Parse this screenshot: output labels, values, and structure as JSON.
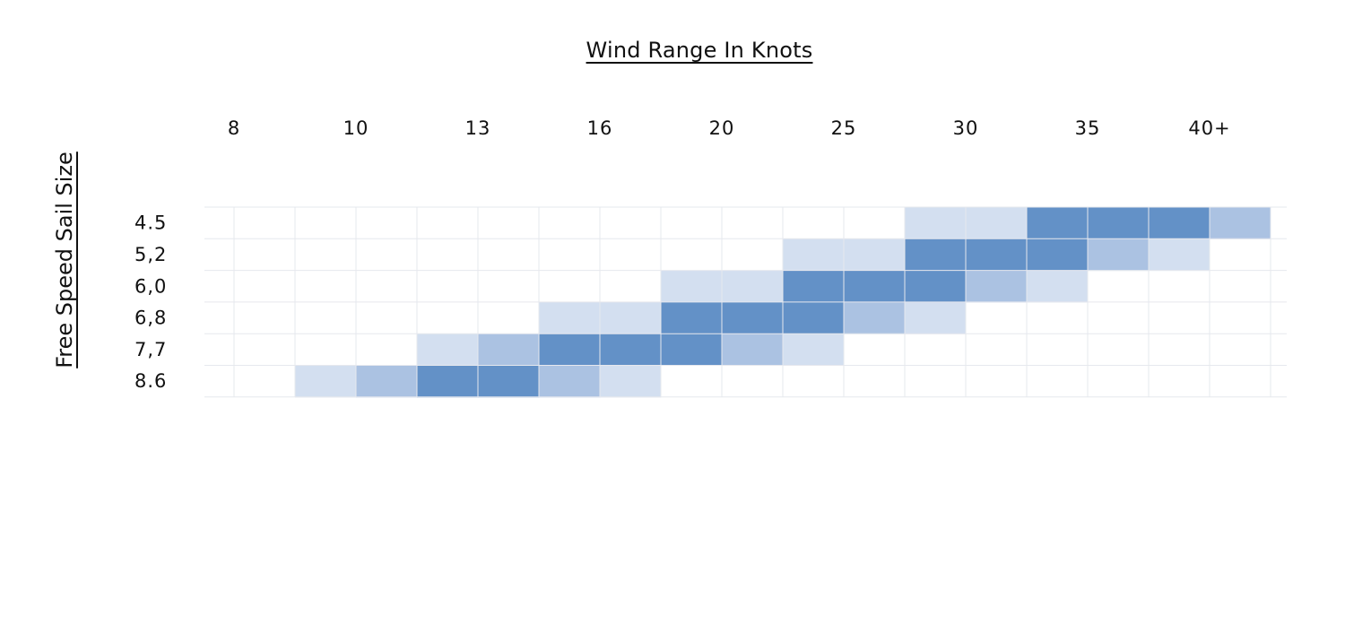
{
  "chart_data": {
    "type": "heatmap",
    "title": "Wind Range In Knots",
    "xlabel": "Wind Range In Knots",
    "ylabel": "Free Speed Sail Size",
    "x_ticks": [
      "8",
      "10",
      "13",
      "16",
      "20",
      "25",
      "30",
      "35",
      "40+"
    ],
    "rows": [
      {
        "label": "4.5",
        "cells": [
          0,
          0,
          0,
          0,
          0,
          0,
          0,
          0,
          0,
          0,
          0,
          1,
          1,
          3,
          3,
          3,
          2
        ]
      },
      {
        "label": "5,2",
        "cells": [
          0,
          0,
          0,
          0,
          0,
          0,
          0,
          0,
          0,
          1,
          1,
          3,
          3,
          3,
          2,
          1,
          0
        ]
      },
      {
        "label": "6,0",
        "cells": [
          0,
          0,
          0,
          0,
          0,
          0,
          0,
          1,
          1,
          3,
          3,
          3,
          2,
          1,
          0,
          0,
          0
        ]
      },
      {
        "label": "6,8",
        "cells": [
          0,
          0,
          0,
          0,
          0,
          1,
          1,
          3,
          3,
          3,
          2,
          1,
          0,
          0,
          0,
          0,
          0
        ]
      },
      {
        "label": "7,7",
        "cells": [
          0,
          0,
          0,
          1,
          2,
          3,
          3,
          3,
          2,
          1,
          0,
          0,
          0,
          0,
          0,
          0,
          0
        ]
      },
      {
        "label": "8.6",
        "cells": [
          0,
          1,
          2,
          3,
          3,
          2,
          1,
          0,
          0,
          0,
          0,
          0,
          0,
          0,
          0,
          0,
          0
        ]
      }
    ],
    "intensity_colors": [
      "#ffffff",
      "#d3dff0",
      "#abc2e2",
      "#6391c7"
    ],
    "grid_color": "#e6e8ee",
    "grid": true
  }
}
